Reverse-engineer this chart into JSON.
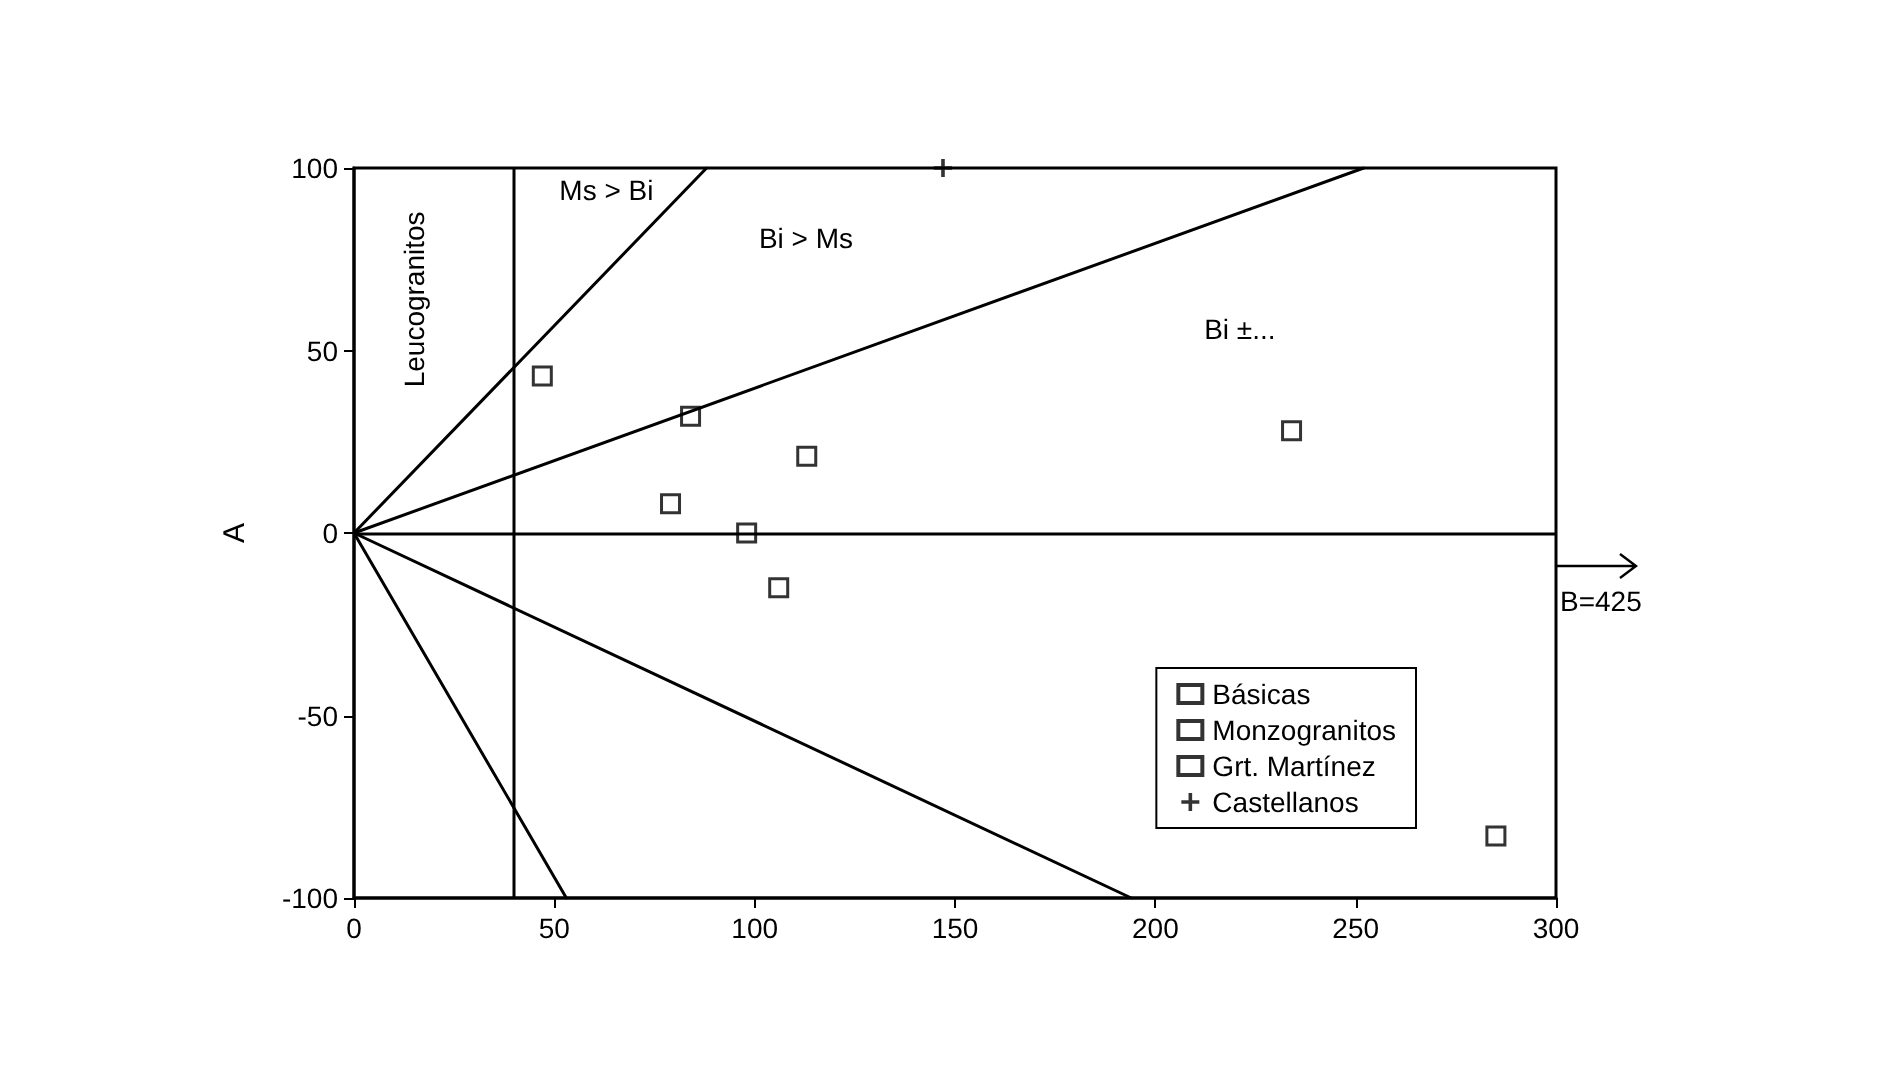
{
  "chart_data": {
    "type": "scatter",
    "ylabel": "A",
    "xlim": [
      0,
      300
    ],
    "ylim": [
      -100,
      100
    ],
    "xticks": [
      0,
      50,
      100,
      150,
      200,
      250,
      300
    ],
    "yticks": [
      -100,
      -50,
      0,
      50,
      100
    ],
    "grid": false,
    "legend": "bottom right",
    "series": [
      {
        "name": "Básicas",
        "color": "#000000",
        "marker": "square",
        "x": [
          234,
          285
        ],
        "values": [
          28,
          -83
        ]
      },
      {
        "name": "Monzogranitos",
        "color": "#000000",
        "marker": "square",
        "x": [
          84,
          79,
          98,
          106,
          113
        ],
        "values": [
          32,
          8,
          0,
          -15,
          21
        ]
      },
      {
        "name": "Grt. Martínez",
        "color": "#000000",
        "marker": "square",
        "x": [
          47
        ],
        "values": [
          43
        ]
      },
      {
        "name": "Castellanos",
        "color": "#000000",
        "marker": "cross",
        "x": [
          147
        ],
        "values": [
          100
        ]
      },
      {
        "type": "line",
        "color": "#000000",
        "marker": "none",
        "x": [
          0,
          88
        ],
        "values": [
          0,
          100
        ]
      },
      {
        "type": "line",
        "color": "#000000",
        "marker": "none",
        "x": [
          0,
          252
        ],
        "values": [
          0,
          100
        ]
      },
      {
        "type": "line",
        "color": "#000000",
        "marker": "none",
        "x": [
          0,
          53
        ],
        "values": [
          0,
          -100
        ]
      },
      {
        "type": "line",
        "color": "#000000",
        "marker": "none",
        "x": [
          0,
          194
        ],
        "values": [
          0,
          -100
        ]
      }
    ],
    "ref_lines": [
      {
        "axis": "y",
        "value": 0,
        "color": "#000000"
      },
      {
        "axis": "x",
        "value": 40,
        "color": "#000000"
      }
    ],
    "annotations": [
      "Leucogranitos",
      "Ms > Bi",
      "Bi > Ms",
      "Bi ±...",
      "B=425"
    ]
  }
}
